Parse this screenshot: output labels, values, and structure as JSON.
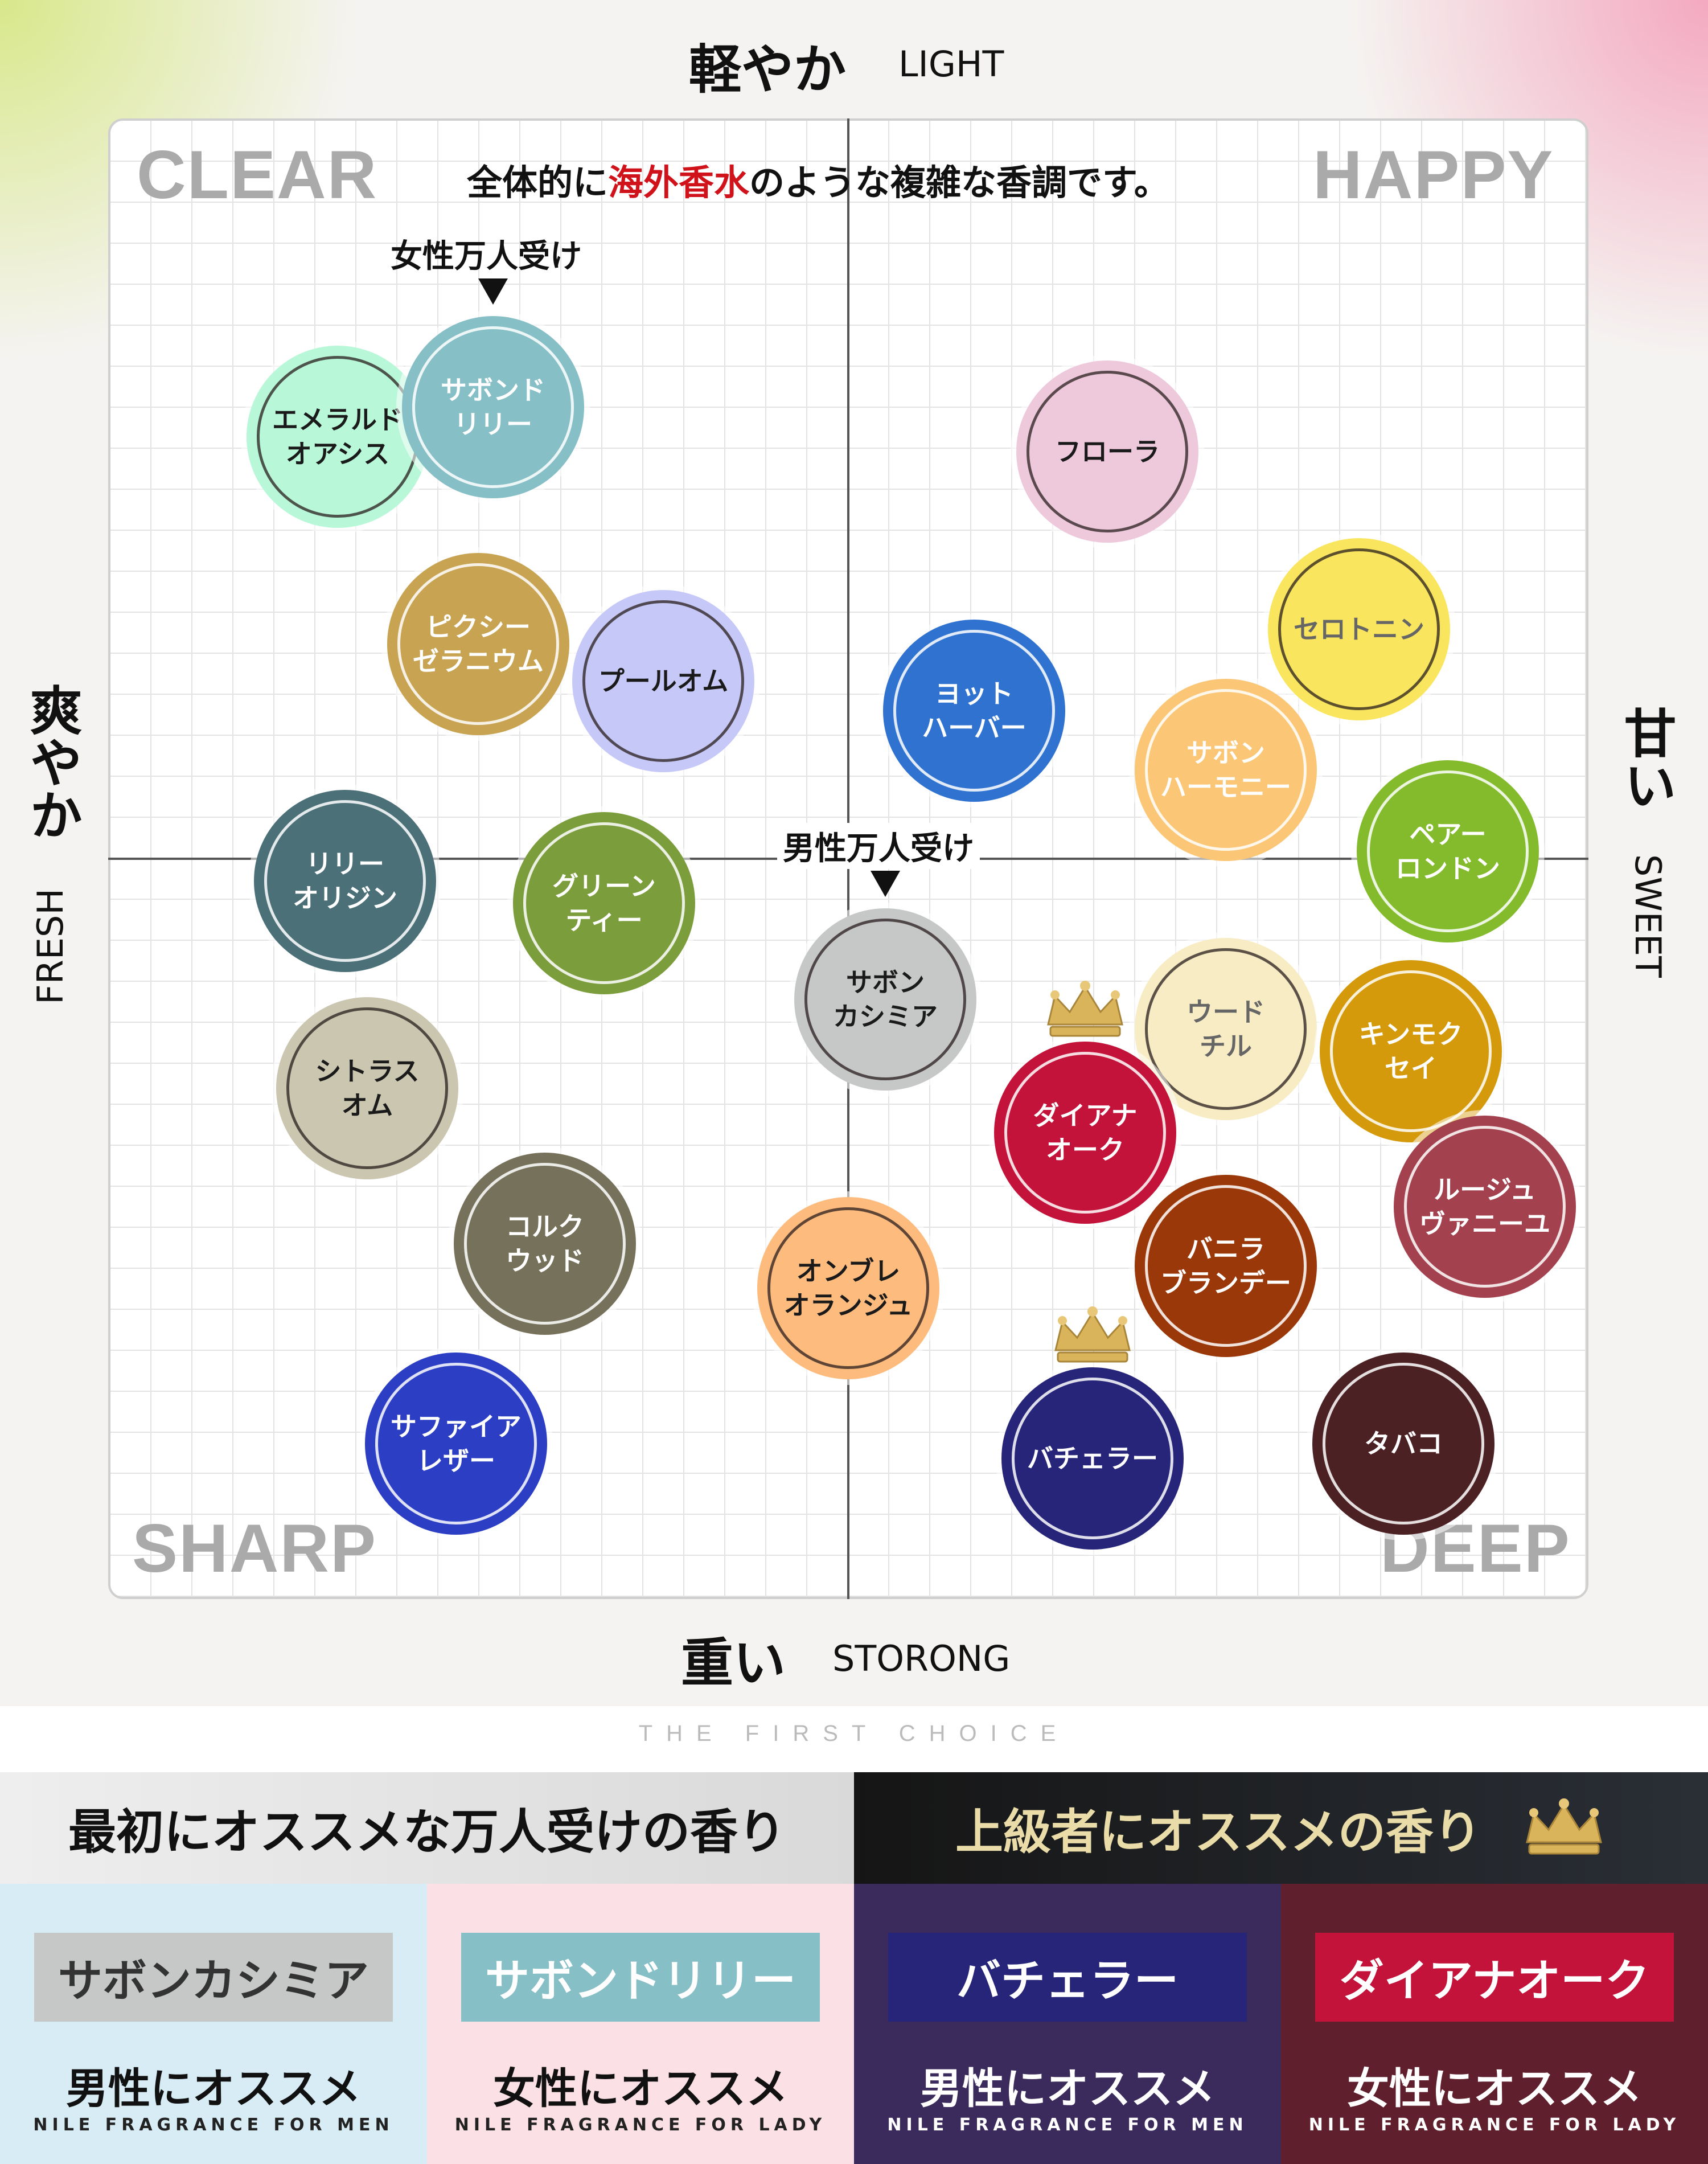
{
  "axes": {
    "top": {
      "main": "軽やか",
      "en": "LIGHT"
    },
    "bottom": {
      "main": "重い",
      "en": "STORONG"
    },
    "left": {
      "main": "爽やか",
      "en": "FRESH"
    },
    "right": {
      "main": "甘い",
      "en": "SWEET"
    }
  },
  "quadrants": {
    "top_left": "CLEAR",
    "top_right": "HAPPY",
    "bottom_left": "SHARP",
    "bottom_right": "DEEP"
  },
  "headline": {
    "pre": "全体的に",
    "highlight": "海外香水",
    "post": "のような複雑な香調です。",
    "highlight_color": "#d0121b"
  },
  "markers": {
    "women": "女性万人受け",
    "men": "男性万人受け"
  },
  "chart_data": {
    "type": "scatter",
    "xlabel": "爽やか FRESH ⟷ 甘い SWEET",
    "ylabel": "軽やか LIGHT ⟷ 重い STORONG",
    "xlim": [
      -1,
      1
    ],
    "ylim": [
      -1,
      1
    ],
    "grid": true,
    "points": [
      {
        "name": "エメラルド\nオアシス",
        "x": -0.69,
        "y": 0.57,
        "color": "#b8f7d8",
        "text": "#1a1a1a"
      },
      {
        "name": "サボンド\nリリー",
        "x": -0.48,
        "y": 0.61,
        "color": "#86bfc6",
        "text": "#ffffff",
        "marker": "women"
      },
      {
        "name": "ピクシー\nゼラニウム",
        "x": -0.5,
        "y": 0.29,
        "color": "#c7a352",
        "text": "#ffffff"
      },
      {
        "name": "プールオム",
        "x": -0.25,
        "y": 0.24,
        "color": "#c6c9f8",
        "text": "#1a1a1a"
      },
      {
        "name": "リリー\nオリジン",
        "x": -0.68,
        "y": -0.03,
        "color": "#4b7078",
        "text": "#ffffff"
      },
      {
        "name": "グリーン\nティー",
        "x": -0.33,
        "y": -0.06,
        "color": "#7b9d3c",
        "text": "#ffffff"
      },
      {
        "name": "シトラス\nオム",
        "x": -0.65,
        "y": -0.31,
        "color": "#cbc6b0",
        "text": "#1a1a1a"
      },
      {
        "name": "コルク\nウッド",
        "x": -0.41,
        "y": -0.52,
        "color": "#76715a",
        "text": "#ffffff"
      },
      {
        "name": "サファイア\nレザー",
        "x": -0.53,
        "y": -0.79,
        "color": "#2c3fc4",
        "text": "#ffffff"
      },
      {
        "name": "フローラ",
        "x": 0.35,
        "y": 0.55,
        "color": "#eec9dc",
        "text": "#1a1a1a"
      },
      {
        "name": "セロトニン",
        "x": 0.69,
        "y": 0.31,
        "color": "#fae65e",
        "text": "#666666"
      },
      {
        "name": "ヨット\nハーバー",
        "x": 0.17,
        "y": 0.2,
        "color": "#2f72d0",
        "text": "#ffffff"
      },
      {
        "name": "サボン\nハーモニー",
        "x": 0.51,
        "y": 0.12,
        "color": "#fbc676",
        "text": "#ffffff"
      },
      {
        "name": "ペアー\nロンドン",
        "x": 0.81,
        "y": 0.01,
        "color": "#83bb2c",
        "text": "#ffffff"
      },
      {
        "name": "サボン\nカシミア",
        "x": 0.05,
        "y": -0.19,
        "color": "#c5c8c6",
        "text": "#1a1a1a",
        "marker": "men"
      },
      {
        "name": "ウード\nチル",
        "x": 0.51,
        "y": -0.23,
        "color": "#f7ecc4",
        "text": "#666666"
      },
      {
        "name": "キンモク\nセイ",
        "x": 0.76,
        "y": -0.26,
        "color": "#d49a0c",
        "text": "#ffffff"
      },
      {
        "name": "ダイアナ\nオーク",
        "x": 0.32,
        "y": -0.37,
        "color": "#c3133a",
        "text": "#ffffff",
        "crown": true
      },
      {
        "name": "ルージュ\nヴァニーユ",
        "x": 0.86,
        "y": -0.47,
        "color": "#a3414e",
        "text": "#ffffff"
      },
      {
        "name": "バニラ\nブランデー",
        "x": 0.51,
        "y": -0.55,
        "color": "#9a3809",
        "text": "#ffffff"
      },
      {
        "name": "オンブレ\nオランジュ",
        "x": 0.0,
        "y": -0.58,
        "color": "#fdbb7d",
        "text": "#1a1a1a"
      },
      {
        "name": "バチェラー",
        "x": 0.33,
        "y": -0.81,
        "color": "#26257a",
        "text": "#ffffff",
        "crown": true
      },
      {
        "name": "タバコ",
        "x": 0.75,
        "y": -0.79,
        "color": "#4c2124",
        "text": "#ffffff"
      }
    ]
  },
  "footer": {
    "tagline": "THE FIRST CHOICE",
    "left_heading": "最初にオススメな万人受けの香り",
    "right_heading": "上級者にオススメの香り",
    "crown_icon": "crown-icon",
    "cards": [
      {
        "name": "サボンカシミア",
        "sub": "男性にオススメ",
        "en": "NILE FRAGRANCE FOR MEN",
        "pill_bg": "#c5c8c6",
        "pill_fg": "#333333",
        "bg": "#d8ecf5",
        "sub_fg": "#111111",
        "en_fg": "#222222"
      },
      {
        "name": "サボンドリリー",
        "sub": "女性にオススメ",
        "en": "NILE FRAGRANCE FOR LADY",
        "pill_bg": "#86bfc6",
        "pill_fg": "#ffffff",
        "bg": "#fbe1e6",
        "sub_fg": "#111111",
        "en_fg": "#222222"
      },
      {
        "name": "バチェラー",
        "sub": "男性にオススメ",
        "en": "NILE FRAGRANCE FOR MEN",
        "pill_bg": "#26257a",
        "pill_fg": "#ffffff",
        "bg": "#3b2a5c",
        "sub_fg": "#ffffff",
        "en_fg": "#ffffff"
      },
      {
        "name": "ダイアナオーク",
        "sub": "女性にオススメ",
        "en": "NILE FRAGRANCE FOR LADY",
        "pill_bg": "#c3133a",
        "pill_fg": "#ffffff",
        "bg": "#5f1f2c",
        "sub_fg": "#ffffff",
        "en_fg": "#ffffff"
      }
    ]
  }
}
